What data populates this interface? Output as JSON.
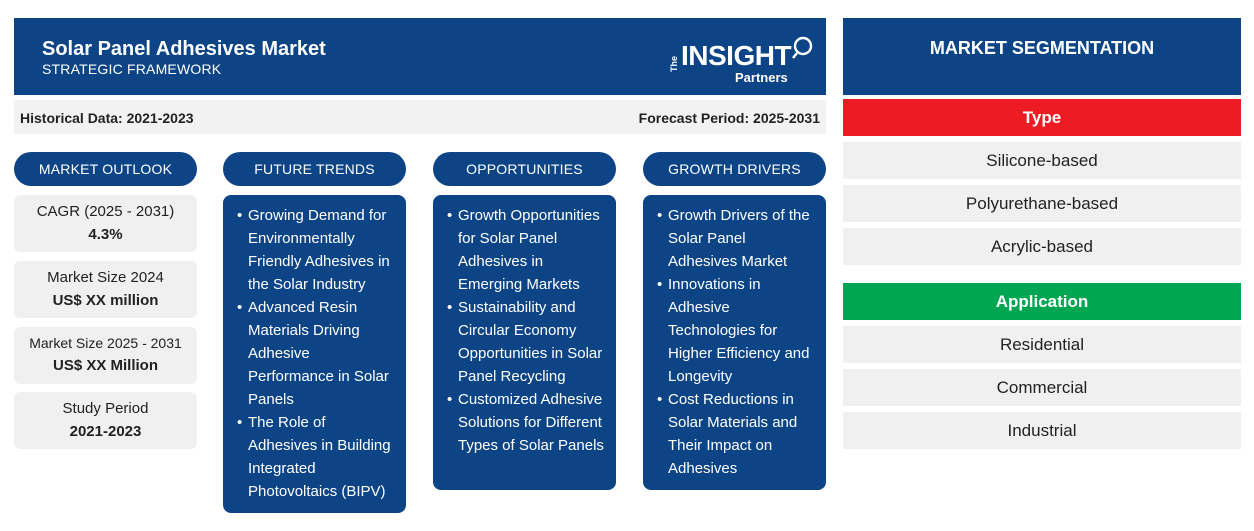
{
  "header": {
    "title": "Solar Panel Adhesives Market",
    "subtitle": "STRATEGIC FRAMEWORK",
    "logo": {
      "the": "The",
      "insight": "INSIGHT",
      "partners": "Partners"
    }
  },
  "databar": {
    "historical": "Historical Data: 2021-2023",
    "forecast": "Forecast Period: 2025-2031"
  },
  "columns": {
    "outlook": "MARKET OUTLOOK",
    "trends": "FUTURE TRENDS",
    "opportunities": "OPPORTUNITIES",
    "drivers": "GROWTH DRIVERS"
  },
  "outlook": [
    {
      "label": "CAGR (2025 - 2031)",
      "value": "4.3%"
    },
    {
      "label": "Market Size 2024",
      "value": "US$ XX million"
    },
    {
      "label": "Market Size 2025 - 2031",
      "value": "US$ XX Million"
    },
    {
      "label": "Study Period",
      "value": "2021-2023"
    }
  ],
  "trends": [
    "Growing Demand for Environmentally Friendly Adhesives in the Solar Industry",
    "Advanced Resin Materials Driving Adhesive Performance in Solar Panels",
    "The Role of Adhesives in Building Integrated Photovoltaics (BIPV)"
  ],
  "opportunities": [
    "Growth Opportunities for Solar Panel Adhesives in Emerging Markets",
    "Sustainability and Circular Economy Opportunities in Solar Panel Recycling",
    "Customized Adhesive Solutions for Different Types of Solar Panels"
  ],
  "drivers": [
    "Growth Drivers of the Solar Panel Adhesives Market",
    "Innovations in Adhesive Technologies for Higher Efficiency and Longevity",
    "Cost Reductions in Solar Materials and Their Impact on Adhesives"
  ],
  "segmentation": {
    "title": "MARKET SEGMENTATION",
    "type": {
      "heading": "Type",
      "color": "#ed1c24",
      "items": [
        "Silicone-based",
        "Polyurethane-based",
        "Acrylic-based"
      ]
    },
    "application": {
      "heading": "Application",
      "color": "#00a651",
      "items": [
        "Residential",
        "Commercial",
        "Industrial"
      ]
    }
  },
  "colors": {
    "primary": "#0d4486",
    "light_box": "#f0f0f0"
  }
}
